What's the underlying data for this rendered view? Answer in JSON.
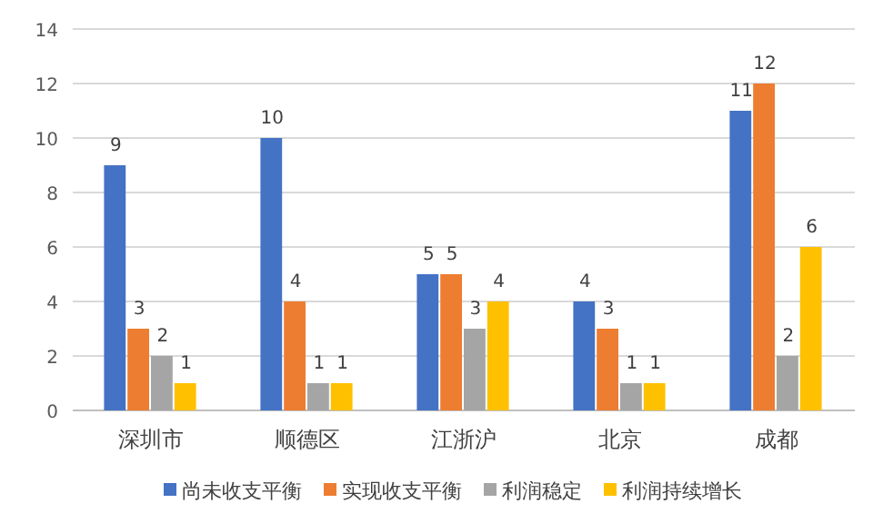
{
  "chart_data": {
    "type": "bar",
    "categories": [
      "深圳市",
      "顺德区",
      "江浙沪",
      "北京",
      "成都"
    ],
    "series": [
      {
        "name": "尚未收支平衡",
        "color": "#4472c4",
        "values": [
          9,
          10,
          5,
          4,
          11
        ]
      },
      {
        "name": "实现收支平衡",
        "color": "#ed7d31",
        "values": [
          3,
          4,
          5,
          3,
          12
        ]
      },
      {
        "name": "利润稳定",
        "color": "#a5a5a5",
        "values": [
          2,
          1,
          3,
          1,
          2
        ]
      },
      {
        "name": "利润持续增长",
        "color": "#ffc000",
        "values": [
          1,
          1,
          4,
          1,
          6
        ]
      }
    ],
    "ylim": [
      0,
      14
    ],
    "yticks": [
      0,
      2,
      4,
      6,
      8,
      10,
      12,
      14
    ],
    "grid": "y",
    "data_labels": true,
    "legend": "bottom"
  }
}
